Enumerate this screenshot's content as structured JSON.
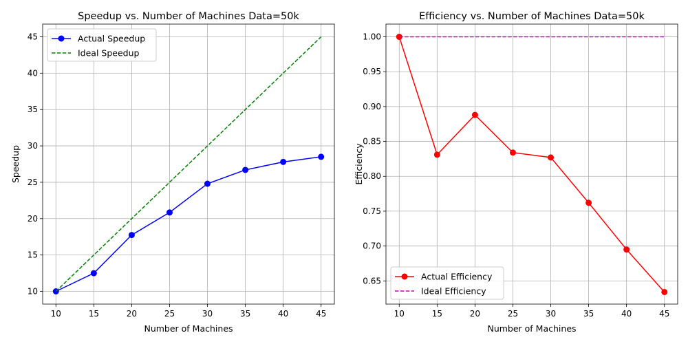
{
  "chart_data": [
    {
      "type": "line",
      "title": "Speedup vs. Number of Machines Data=50k",
      "xlabel": "Number of Machines",
      "ylabel": "Speedup",
      "x": [
        10,
        15,
        20,
        25,
        30,
        35,
        40,
        45
      ],
      "xticks": [
        "10",
        "15",
        "20",
        "25",
        "30",
        "35",
        "40",
        "45"
      ],
      "yticks": [
        "10",
        "15",
        "20",
        "25",
        "30",
        "35",
        "40",
        "45"
      ],
      "xlim": [
        8.25,
        46.75
      ],
      "ylim": [
        8.25,
        46.75
      ],
      "grid": true,
      "legend_position": "upper left",
      "series": [
        {
          "name": "Actual Speedup",
          "values": [
            10.0,
            12.5,
            17.75,
            20.85,
            24.8,
            26.7,
            27.8,
            28.5
          ],
          "color": "#0000ff",
          "style": "solid",
          "marker": "circle"
        },
        {
          "name": "Ideal Speedup",
          "values": [
            10,
            15,
            20,
            25,
            30,
            35,
            40,
            45
          ],
          "color": "#008000",
          "style": "dashed",
          "marker": "none"
        }
      ]
    },
    {
      "type": "line",
      "title": "Efficiency vs. Number of Machines Data=50k",
      "xlabel": "Number of Machines",
      "ylabel": "Efficiency",
      "x": [
        10,
        15,
        20,
        25,
        30,
        35,
        40,
        45
      ],
      "xticks": [
        "10",
        "15",
        "20",
        "25",
        "30",
        "35",
        "40",
        "45"
      ],
      "yticks": [
        "0.65",
        "0.70",
        "0.75",
        "0.80",
        "0.85",
        "0.90",
        "0.95",
        "1.00"
      ],
      "xlim": [
        8.25,
        46.75
      ],
      "ylim": [
        0.6167,
        1.0183
      ],
      "grid": true,
      "legend_position": "lower left",
      "series": [
        {
          "name": "Actual Efficiency",
          "values": [
            1.0,
            0.831,
            0.888,
            0.834,
            0.827,
            0.762,
            0.695,
            0.634
          ],
          "color": "#ff0000",
          "style": "solid",
          "marker": "circle"
        },
        {
          "name": "Ideal Efficiency",
          "values": [
            1,
            1,
            1,
            1,
            1,
            1,
            1,
            1
          ],
          "color": "#bf00bf",
          "style": "dashed",
          "marker": "none"
        }
      ]
    }
  ]
}
